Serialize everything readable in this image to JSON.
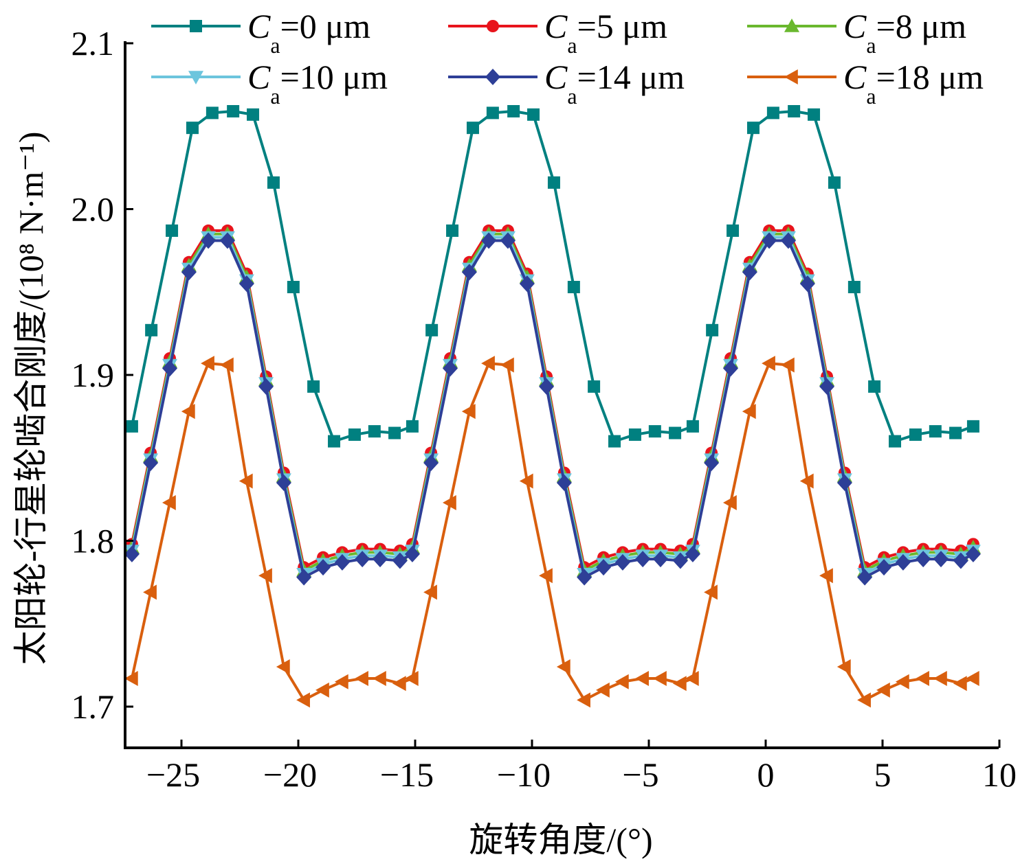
{
  "chart_data": {
    "type": "line",
    "title": "",
    "xlabel": "旋转角度/(°)",
    "ylabel": "太阳轮-行星轮啮合刚度/(10⁸ N·m⁻¹)",
    "xlim": [
      -27.4,
      10
    ],
    "ylim": [
      1.676,
      2.1
    ],
    "xticks": [
      -25,
      -20,
      -15,
      -10,
      -5,
      0,
      5,
      10
    ],
    "xtick_labels": [
      "−25",
      "−20",
      "−15",
      "−10",
      "−5",
      "0",
      "5",
      "10"
    ],
    "yticks": [
      1.7,
      1.8,
      1.9,
      2.0,
      2.1
    ],
    "ytick_labels": [
      "1.7",
      "1.8",
      "1.9",
      "2.0",
      "2.1"
    ],
    "grid": false,
    "legend_placement": "top",
    "period_deg": 12,
    "series": [
      {
        "name": "Ca=0 μm",
        "label_symbol": "C",
        "label_sub": "a",
        "label_value": "=0 μm",
        "color": "#008080",
        "marker": "square",
        "x_cycle": [
          -27.12,
          -26.29,
          -25.41,
          -24.53,
          -23.68,
          -22.79,
          -21.94,
          -21.06,
          -20.21,
          -19.35,
          -18.47,
          -17.59,
          -16.74,
          -15.88
        ],
        "values_cycle": [
          1.869,
          1.927,
          1.987,
          2.049,
          2.058,
          2.059,
          2.057,
          2.016,
          1.953,
          1.893,
          1.86,
          1.864,
          1.866,
          1.865
        ],
        "cycles": 3
      },
      {
        "name": "Ca=5 μm",
        "label_symbol": "C",
        "label_sub": "a",
        "label_value": "=5 μm",
        "color": "#e8141c",
        "marker": "circle",
        "x_cycle": [
          -27.12,
          -26.32,
          -25.5,
          -24.68,
          -23.85,
          -23.03,
          -22.21,
          -21.38,
          -20.62,
          -19.76,
          -18.94,
          -18.12,
          -17.26,
          -16.5,
          -15.65
        ],
        "values_cycle": [
          1.798,
          1.853,
          1.91,
          1.968,
          1.987,
          1.987,
          1.961,
          1.899,
          1.841,
          1.784,
          1.79,
          1.793,
          1.795,
          1.795,
          1.794
        ],
        "cycles": 3
      },
      {
        "name": "Ca=8 μm",
        "label_symbol": "C",
        "label_sub": "a",
        "label_value": "=8 μm",
        "color": "#6ab82e",
        "marker": "triangle-up",
        "x_cycle": [
          -27.12,
          -26.32,
          -25.5,
          -24.68,
          -23.85,
          -23.03,
          -22.21,
          -21.38,
          -20.62,
          -19.76,
          -18.94,
          -18.12,
          -17.26,
          -16.5,
          -15.65
        ],
        "values_cycle": [
          1.796,
          1.851,
          1.908,
          1.966,
          1.985,
          1.985,
          1.959,
          1.897,
          1.839,
          1.782,
          1.788,
          1.791,
          1.793,
          1.793,
          1.792
        ],
        "cycles": 3
      },
      {
        "name": "Ca=10 μm",
        "label_symbol": "C",
        "label_sub": "a",
        "label_value": "=10 μm",
        "color": "#6cc5dd",
        "marker": "triangle-down",
        "x_cycle": [
          -27.12,
          -26.32,
          -25.5,
          -24.68,
          -23.85,
          -23.03,
          -22.21,
          -21.38,
          -20.62,
          -19.76,
          -18.94,
          -18.12,
          -17.26,
          -16.5,
          -15.65
        ],
        "values_cycle": [
          1.794,
          1.849,
          1.906,
          1.964,
          1.983,
          1.983,
          1.957,
          1.895,
          1.837,
          1.78,
          1.786,
          1.789,
          1.791,
          1.791,
          1.79
        ],
        "cycles": 3
      },
      {
        "name": "Ca=14 μm",
        "label_symbol": "C",
        "label_sub": "a",
        "label_value": "=14 μm",
        "color": "#2e3f97",
        "marker": "diamond",
        "x_cycle": [
          -27.12,
          -26.32,
          -25.5,
          -24.68,
          -23.85,
          -23.03,
          -22.21,
          -21.38,
          -20.62,
          -19.76,
          -18.94,
          -18.12,
          -17.26,
          -16.5,
          -15.65
        ],
        "values_cycle": [
          1.792,
          1.847,
          1.904,
          1.962,
          1.981,
          1.981,
          1.955,
          1.893,
          1.835,
          1.778,
          1.784,
          1.787,
          1.789,
          1.789,
          1.788
        ],
        "cycles": 3
      },
      {
        "name": "Ca=18 μm",
        "label_symbol": "C",
        "label_sub": "a",
        "label_value": "=18 μm",
        "color": "#d95f0e",
        "marker": "triangle-left",
        "x_cycle": [
          -27.12,
          -26.32,
          -25.5,
          -24.68,
          -23.85,
          -23.03,
          -22.21,
          -21.38,
          -20.62,
          -19.76,
          -18.94,
          -18.12,
          -17.26,
          -16.5,
          -15.65
        ],
        "values_cycle": [
          1.717,
          1.769,
          1.823,
          1.878,
          1.907,
          1.906,
          1.836,
          1.779,
          1.724,
          1.704,
          1.71,
          1.715,
          1.717,
          1.717,
          1.714
        ],
        "cycles": 3
      }
    ]
  }
}
